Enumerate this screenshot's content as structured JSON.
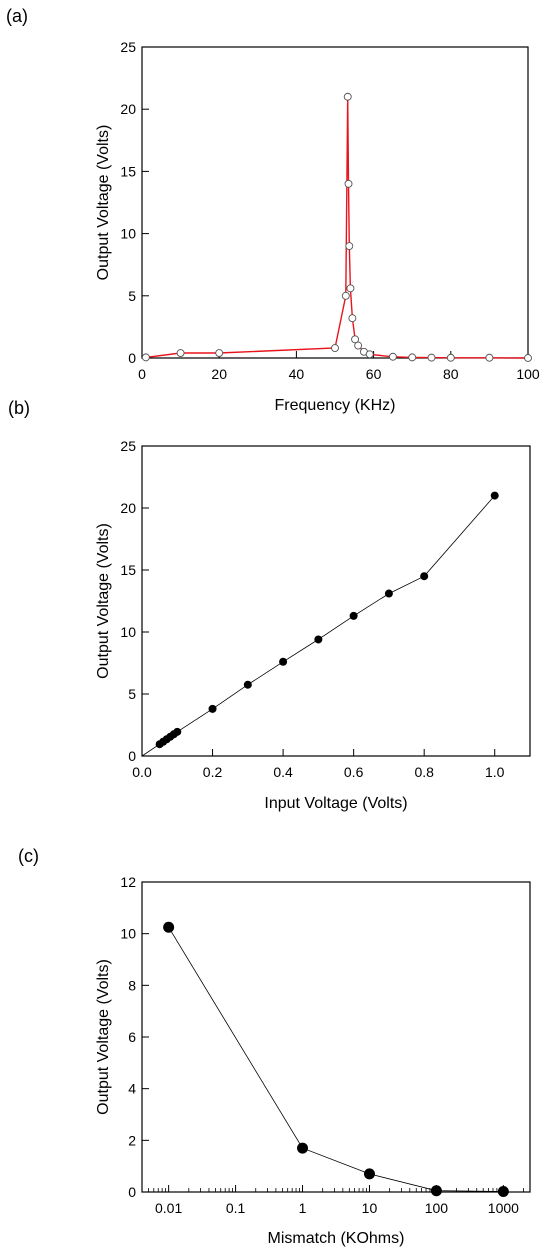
{
  "panels": [
    {
      "panel_label": "(a)",
      "chart_data": {
        "type": "line",
        "xlabel": "Frequency (KHz)",
        "ylabel": "Output Voltage (Volts)",
        "xlim": [
          0,
          100
        ],
        "ylim": [
          0,
          25
        ],
        "x_scale": "linear",
        "xticks": [
          0,
          20,
          40,
          60,
          80,
          100
        ],
        "yticks": [
          0,
          5,
          10,
          15,
          20,
          25
        ],
        "grid": false,
        "series": [
          {
            "color": "#e8141c",
            "marker": "open-circle",
            "x": [
              1,
              10,
              20,
              50,
              52.8,
              53.3,
              53.5,
              53.7,
              54,
              54.5,
              55.2,
              56,
              57.5,
              59,
              65,
              70,
              75,
              80,
              90,
              100
            ],
            "y": [
              0.05,
              0.4,
              0.4,
              0.8,
              5.0,
              21.0,
              14.0,
              9.0,
              5.6,
              3.2,
              1.5,
              1.0,
              0.5,
              0.3,
              0.1,
              0.05,
              0.03,
              0.02,
              0.02,
              0.0
            ]
          }
        ]
      }
    },
    {
      "panel_label": "(b)",
      "chart_data": {
        "type": "line",
        "xlabel": "Input Voltage (Volts)",
        "ylabel": "Output Voltage (Volts)",
        "xlim": [
          0,
          1.1
        ],
        "ylim": [
          0,
          25
        ],
        "x_scale": "linear",
        "xticks": [
          0.0,
          0.2,
          0.4,
          0.6,
          0.8,
          1.0
        ],
        "xtick_labels": [
          "0.0",
          "0.2",
          "0.4",
          "0.6",
          "0.8",
          "1.0"
        ],
        "yticks": [
          0,
          5,
          10,
          15,
          20,
          25
        ],
        "grid": false,
        "line_from_origin": true,
        "series": [
          {
            "color": "#000000",
            "marker": "filled-circle",
            "x": [
              0.05,
              0.06,
              0.07,
              0.08,
              0.09,
              0.1,
              0.2,
              0.3,
              0.4,
              0.5,
              0.6,
              0.7,
              0.8,
              1.0
            ],
            "y": [
              0.95,
              1.15,
              1.35,
              1.55,
              1.75,
              1.95,
              3.8,
              5.75,
              7.6,
              9.4,
              11.3,
              13.1,
              14.5,
              21.0
            ]
          }
        ]
      }
    },
    {
      "panel_label": "(c)",
      "chart_data": {
        "type": "line",
        "xlabel": "Mismatch (KOhms)",
        "ylabel": "Output Voltage (Volts)",
        "xlim": [
          0.004,
          2500
        ],
        "ylim": [
          0,
          12
        ],
        "x_scale": "log",
        "xticks": [
          0.01,
          0.1,
          1,
          10,
          100,
          1000
        ],
        "xtick_labels": [
          "0.01",
          "0.1",
          "1",
          "10",
          "100",
          "1000"
        ],
        "yticks": [
          0,
          2,
          4,
          6,
          8,
          10,
          12
        ],
        "grid": false,
        "series": [
          {
            "color": "#000000",
            "marker": "filled-circle-large",
            "x": [
              0.01,
              1,
              10,
              100,
              1000
            ],
            "y": [
              10.25,
              1.7,
              0.7,
              0.05,
              0.02
            ]
          }
        ]
      }
    }
  ]
}
